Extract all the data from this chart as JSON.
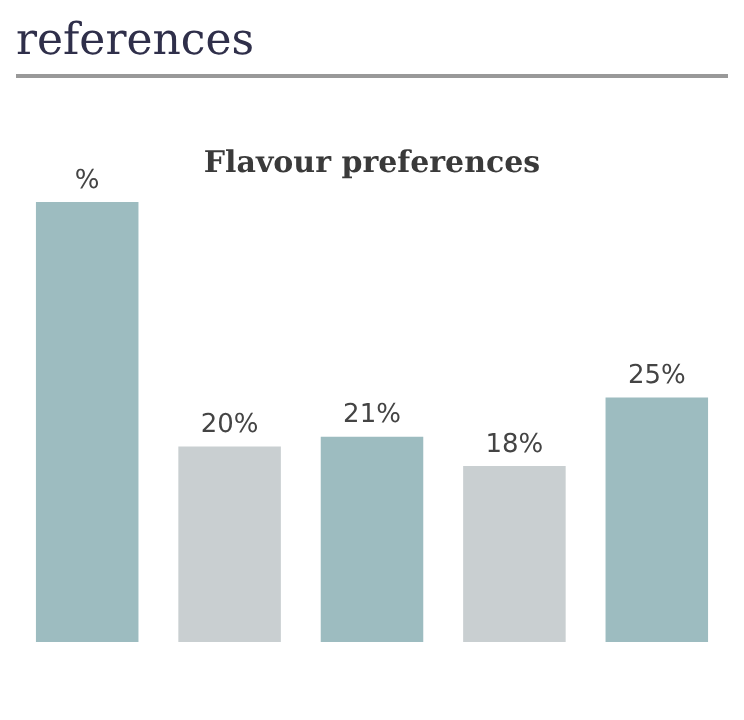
{
  "chart_data": {
    "type": "bar",
    "title": "Flavour preferences",
    "annotations": [
      "references"
    ],
    "categories": [
      null,
      null,
      null,
      null,
      null
    ],
    "values": [
      45,
      20,
      21,
      18,
      25
    ],
    "colors": [
      "#9dbcc0",
      "#c9cfd1",
      "#9dbcc0",
      "#c9cfd1",
      "#9dbcc0"
    ],
    "value_labels": [
      "%",
      "20%",
      "21%",
      "18%",
      "25%"
    ],
    "grid": false,
    "legend": false
  }
}
